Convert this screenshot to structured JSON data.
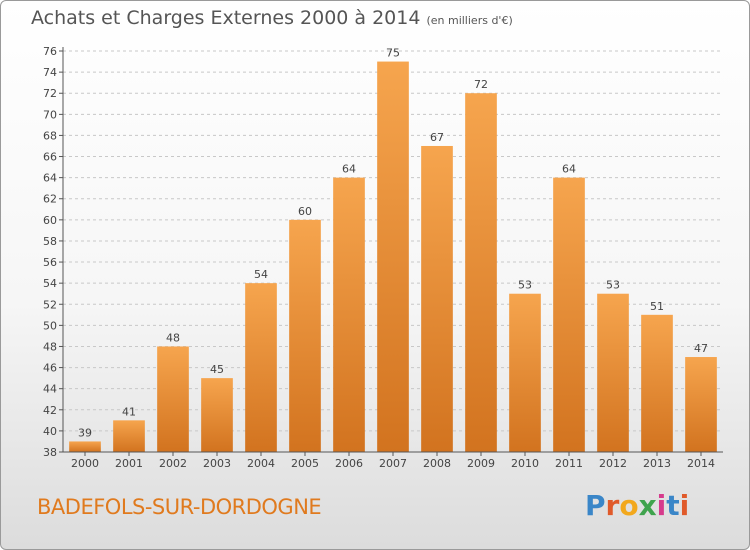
{
  "header": {
    "title": "Achats et Charges Externes 2000 à 2014",
    "subtitle": "(en milliers d'€)"
  },
  "footer": {
    "town": "BADEFOLS-SUR-DORDOGNE",
    "logo": "Proxiti",
    "logo_colors": [
      "#3a86c8",
      "#e05a2a",
      "#f2a81d",
      "#3fa34d",
      "#d63b8c",
      "#3a86c8",
      "#e05a2a"
    ]
  },
  "colors": {
    "bar_light": "#f6a54e",
    "bar_dark": "#d2731f",
    "grid": "#c8c8c8",
    "axis": "#555555"
  },
  "chart_data": {
    "type": "bar",
    "title": "Achats et Charges Externes 2000 à 2014",
    "subtitle": "(en milliers d'€)",
    "categories": [
      "2000",
      "2001",
      "2002",
      "2003",
      "2004",
      "2005",
      "2006",
      "2007",
      "2008",
      "2009",
      "2010",
      "2011",
      "2012",
      "2013",
      "2014"
    ],
    "values": [
      39,
      41,
      48,
      45,
      54,
      60,
      64,
      75,
      67,
      72,
      53,
      64,
      53,
      51,
      47
    ],
    "ylim": [
      38,
      76
    ],
    "yticks": [
      38,
      40,
      42,
      44,
      46,
      48,
      50,
      52,
      54,
      56,
      58,
      60,
      62,
      64,
      66,
      68,
      70,
      72,
      74,
      76
    ],
    "grid": true,
    "data_labels": true
  }
}
